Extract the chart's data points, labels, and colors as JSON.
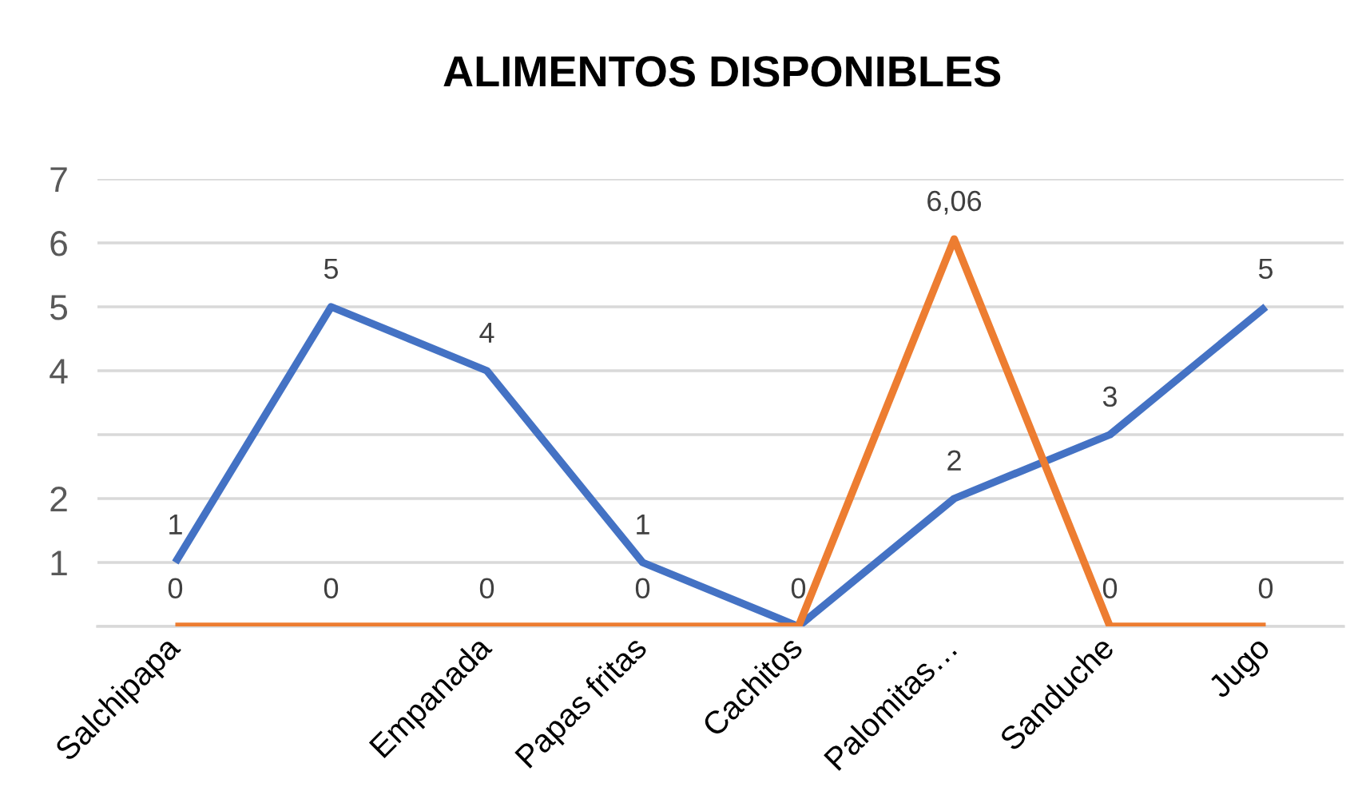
{
  "chart_data": {
    "type": "line",
    "title": "ALIMENTOS DISPONIBLES",
    "categories": [
      "Salchipapa",
      null,
      "Empanada",
      "Papas fritas",
      "Cachitos",
      "Palomitas…",
      "Sanduche",
      "Jugo"
    ],
    "series": [
      {
        "color": "#4472c4",
        "values": [
          1,
          5,
          4,
          1,
          0,
          2,
          3,
          5
        ],
        "value_labels": [
          "1",
          "5",
          "4",
          "1",
          null,
          "2",
          "3",
          "5"
        ]
      },
      {
        "color": "#ed7d31",
        "values": [
          0,
          0,
          0,
          0,
          0,
          6.06,
          0,
          0
        ],
        "value_labels": [
          "0",
          "0",
          "0",
          "0",
          "0",
          "6,06",
          "0",
          "0"
        ]
      }
    ],
    "ylim": [
      0,
      7
    ],
    "yticks": [
      {
        "value": 0,
        "label": null
      },
      1,
      2,
      {
        "value": 3,
        "label": null
      },
      4,
      5,
      6,
      7
    ],
    "grid": "y"
  }
}
